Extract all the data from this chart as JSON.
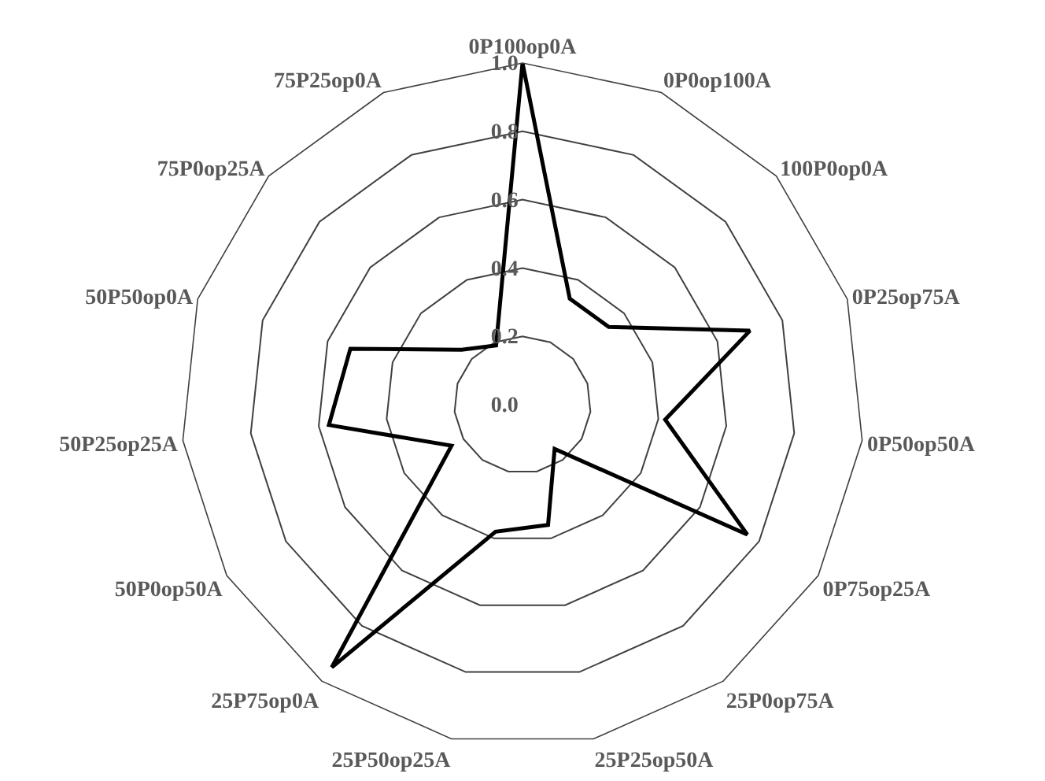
{
  "chart_data": {
    "type": "radar",
    "categories": [
      "0P100op0A",
      "0P0op100A",
      "100P0op0A",
      "0P25op75A",
      "0P50op50A",
      "0P75op25A",
      "25P0op75A",
      "25P25op50A",
      "25P50op25A",
      "25P75op0A",
      "50P0op50A",
      "50P25op25A",
      "50P50op0A",
      "75P0op25A",
      "75P25op0A"
    ],
    "series": [
      {
        "color": "#000000",
        "values": [
          1.0,
          0.34,
          0.34,
          0.7,
          0.42,
          0.76,
          0.16,
          0.36,
          0.38,
          0.95,
          0.24,
          0.57,
          0.53,
          0.24,
          0.19
        ]
      }
    ],
    "ylim": [
      0,
      1
    ],
    "yticks": [
      {
        "value": 0,
        "label": "0.0"
      },
      {
        "value": 0.2,
        "label": "0.2"
      },
      {
        "value": 0.4,
        "label": "0.4"
      },
      {
        "value": 0.6,
        "label": "0.6"
      },
      {
        "value": 0.8,
        "label": "0.8"
      },
      {
        "value": 1,
        "label": "1.0"
      }
    ],
    "grid": true,
    "marker": "none",
    "line_style": "solid"
  }
}
